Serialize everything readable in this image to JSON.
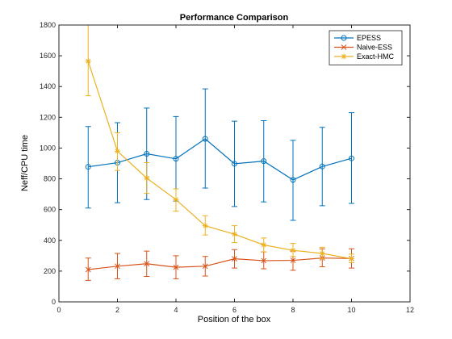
{
  "chart_data": {
    "type": "line",
    "title": "Performance Comparison",
    "xlabel": "Position of the box",
    "ylabel": "Neff/CPU time",
    "xlim": [
      0,
      12
    ],
    "ylim": [
      0,
      1800
    ],
    "xticks": [
      0,
      2,
      4,
      6,
      8,
      10,
      12
    ],
    "yticks": [
      0,
      200,
      400,
      600,
      800,
      1000,
      1200,
      1400,
      1600,
      1800
    ],
    "grid": false,
    "legend_position": "top-right",
    "x": [
      1,
      2,
      3,
      4,
      5,
      6,
      7,
      8,
      9,
      10
    ],
    "series": [
      {
        "name": "EPESS",
        "color": "#0072BD",
        "marker": "circle",
        "values": [
          878,
          905,
          963,
          930,
          1060,
          898,
          915,
          793,
          880,
          933
        ],
        "error_lower": [
          610,
          645,
          665,
          655,
          740,
          620,
          650,
          530,
          625,
          640
        ],
        "error_upper": [
          1140,
          1165,
          1260,
          1205,
          1385,
          1175,
          1178,
          1050,
          1135,
          1230
        ]
      },
      {
        "name": "Naive-ESS",
        "color": "#D95319",
        "marker": "x",
        "values": [
          210,
          232,
          248,
          225,
          232,
          280,
          268,
          270,
          285,
          282
        ],
        "error_lower": [
          140,
          150,
          165,
          150,
          168,
          220,
          215,
          205,
          228,
          220
        ],
        "error_upper": [
          285,
          315,
          330,
          300,
          295,
          340,
          325,
          330,
          345,
          345
        ]
      },
      {
        "name": "Exact-HMC",
        "color": "#EDB120",
        "marker": "star",
        "values": [
          1565,
          980,
          805,
          665,
          495,
          440,
          370,
          335,
          315,
          280
        ],
        "error_lower": [
          1340,
          855,
          705,
          590,
          435,
          385,
          325,
          295,
          280,
          255
        ],
        "error_upper": [
          1800,
          1100,
          905,
          735,
          560,
          495,
          415,
          380,
          355,
          310
        ]
      }
    ]
  }
}
